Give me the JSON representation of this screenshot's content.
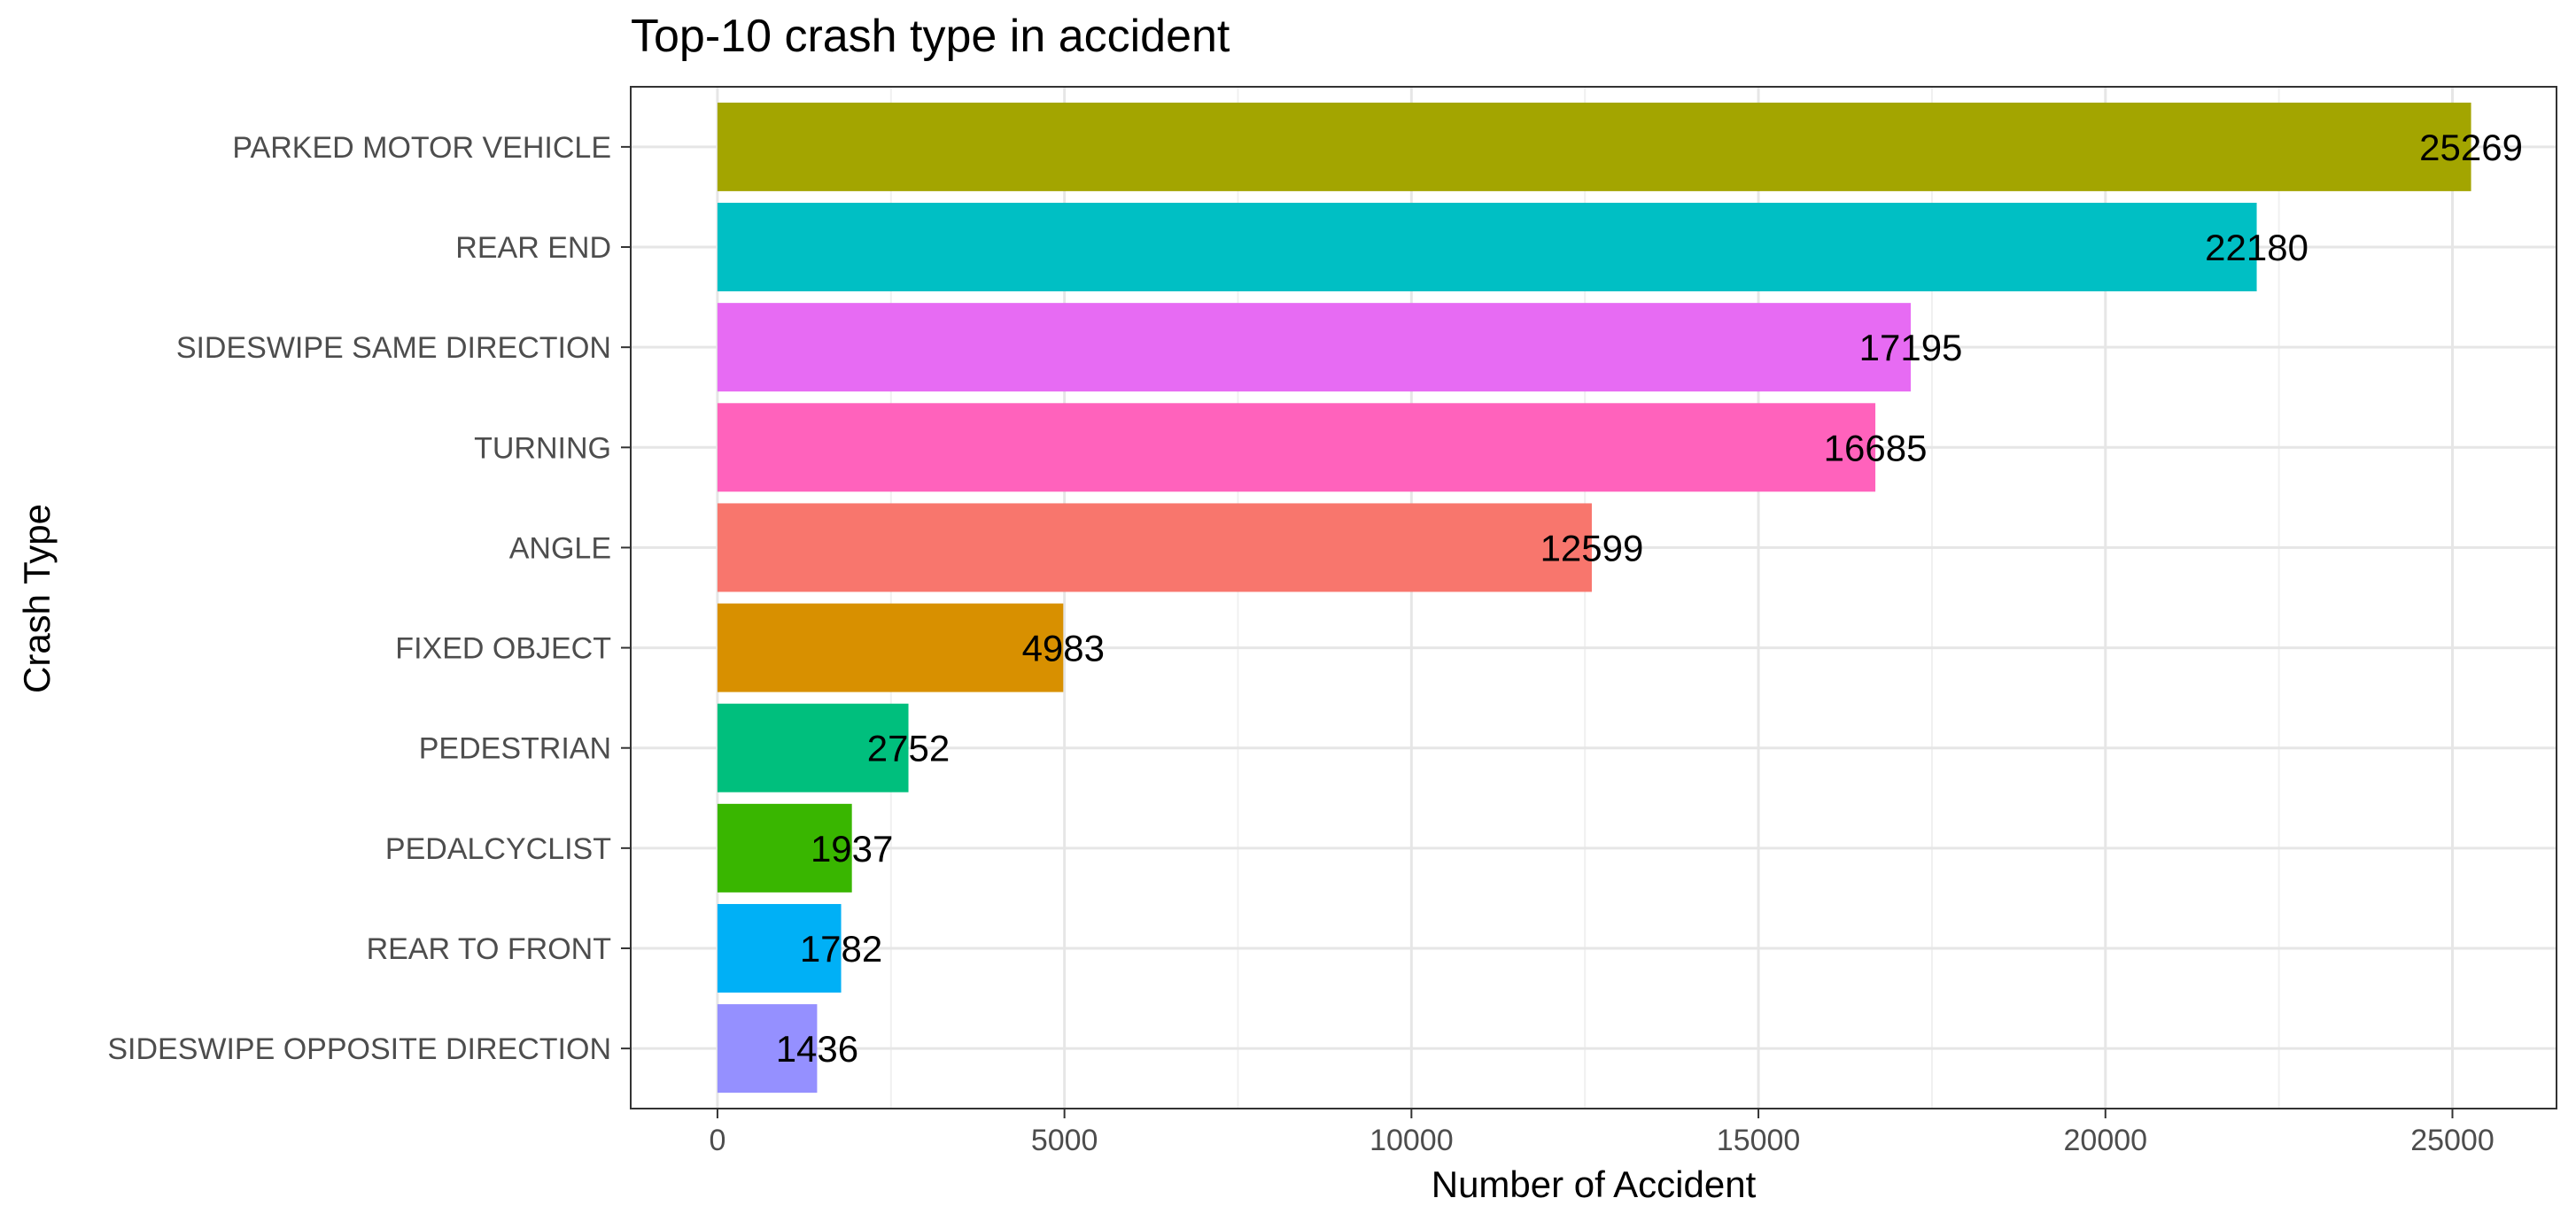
{
  "chart_data": {
    "type": "bar",
    "orientation": "horizontal",
    "title": "Top-10 crash type in accident",
    "xlabel": "Number of Accident",
    "ylabel": "Crash Type",
    "xlim": [
      -1250,
      26500
    ],
    "x_ticks": [
      0,
      5000,
      10000,
      15000,
      20000,
      25000
    ],
    "x_tick_labels": [
      "0",
      "5000",
      "10000",
      "15000",
      "20000",
      "25000"
    ],
    "grid": true,
    "legend": "none",
    "categories": [
      "PARKED MOTOR VEHICLE",
      "REAR END",
      "SIDESWIPE SAME DIRECTION",
      "TURNING",
      "ANGLE",
      "FIXED OBJECT",
      "PEDESTRIAN",
      "PEDALCYCLIST",
      "REAR TO FRONT",
      "SIDESWIPE OPPOSITE DIRECTION"
    ],
    "values": [
      25269,
      22180,
      17195,
      16685,
      12599,
      4983,
      2752,
      1937,
      1782,
      1436
    ],
    "data_labels": [
      "25269",
      "22180",
      "17195",
      "16685",
      "12599",
      "4983",
      "2752",
      "1937",
      "1782",
      "1436"
    ],
    "colors": [
      "#A3A500",
      "#00BFC4",
      "#E76BF3",
      "#FF62BC",
      "#F8766D",
      "#D89000",
      "#00BF7D",
      "#39B600",
      "#00B0F6",
      "#9590FF"
    ]
  }
}
